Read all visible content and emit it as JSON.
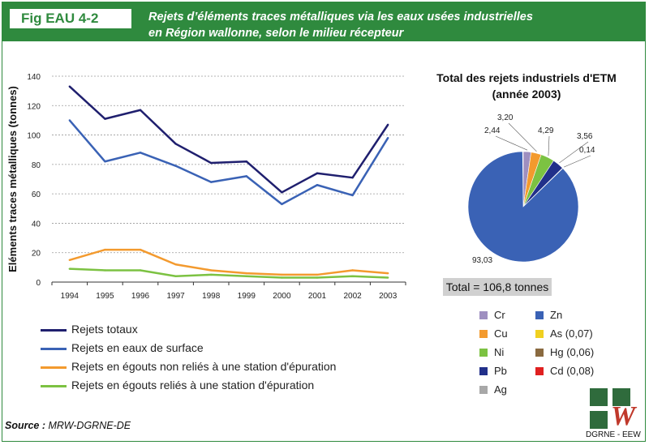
{
  "header": {
    "fig_label": "Fig EAU 4-2",
    "title_line1": "Rejets d’éléments traces métalliques via les eaux usées industrielles",
    "title_line2": "en Région wallonne, selon le milieu récepteur",
    "bg_color": "#2f8a3e"
  },
  "chart_data": [
    {
      "type": "line",
      "ylabel": "Eléments traces métalliques (tonnes)",
      "xlabel": "",
      "ylim": [
        0,
        140
      ],
      "yticks": [
        0,
        20,
        40,
        60,
        80,
        100,
        120,
        140
      ],
      "grid": true,
      "x": [
        "1994",
        "1995",
        "1996",
        "1997",
        "1998",
        "1999",
        "2000",
        "2001",
        "2002",
        "2003"
      ],
      "series": [
        {
          "name": "Rejets totaux",
          "color": "#1f1f6e",
          "values": [
            133,
            111,
            117,
            94,
            81,
            82,
            61,
            74,
            71,
            107
          ]
        },
        {
          "name": "Rejets en eaux de surface",
          "color": "#3a62b5",
          "values": [
            110,
            82,
            88,
            79,
            68,
            72,
            53,
            66,
            59,
            98
          ]
        },
        {
          "name": "Rejets en égouts non reliés à une station d'épuration",
          "color": "#f39a2e",
          "values": [
            15,
            22,
            22,
            12,
            8,
            6,
            5,
            5,
            8,
            6
          ]
        },
        {
          "name": "Rejets en égouts reliés à une station d'épuration",
          "color": "#7cc242",
          "values": [
            9,
            8,
            8,
            4,
            5,
            4,
            3,
            3,
            4,
            3
          ]
        }
      ]
    },
    {
      "type": "pie",
      "title_line1": "Total des rejets industriels d'ETM",
      "title_line2": "(année 2003)",
      "total_label": "Total = 106,8 tonnes",
      "slices": [
        {
          "name": "Cr",
          "value": 2.44,
          "label": "2,44",
          "color": "#9e8fc0"
        },
        {
          "name": "Cu",
          "value": 3.2,
          "label": "3,20",
          "color": "#f39a2e"
        },
        {
          "name": "Ni",
          "value": 4.29,
          "label": "4,29",
          "color": "#7cc242"
        },
        {
          "name": "Pb",
          "value": 3.56,
          "label": "3,56",
          "color": "#22308a"
        },
        {
          "name": "Ag",
          "value": 0.14,
          "label": "0,14",
          "color": "#a8a8a8"
        },
        {
          "name": "Zn",
          "value": 93.03,
          "label": "93,03",
          "color": "#3a62b5"
        },
        {
          "name": "As (0,07)",
          "value": 0.07,
          "label": "",
          "color": "#f0d020"
        },
        {
          "name": "Hg (0,06)",
          "value": 0.06,
          "label": "",
          "color": "#8a6a40"
        },
        {
          "name": "Cd (0,08)",
          "value": 0.08,
          "label": "",
          "color": "#e02020"
        }
      ]
    }
  ],
  "source": {
    "label": "Source :",
    "text": " MRW-DGRNE-DE"
  },
  "logo": {
    "text": "DGRNE - EEW",
    "mark": "W"
  }
}
